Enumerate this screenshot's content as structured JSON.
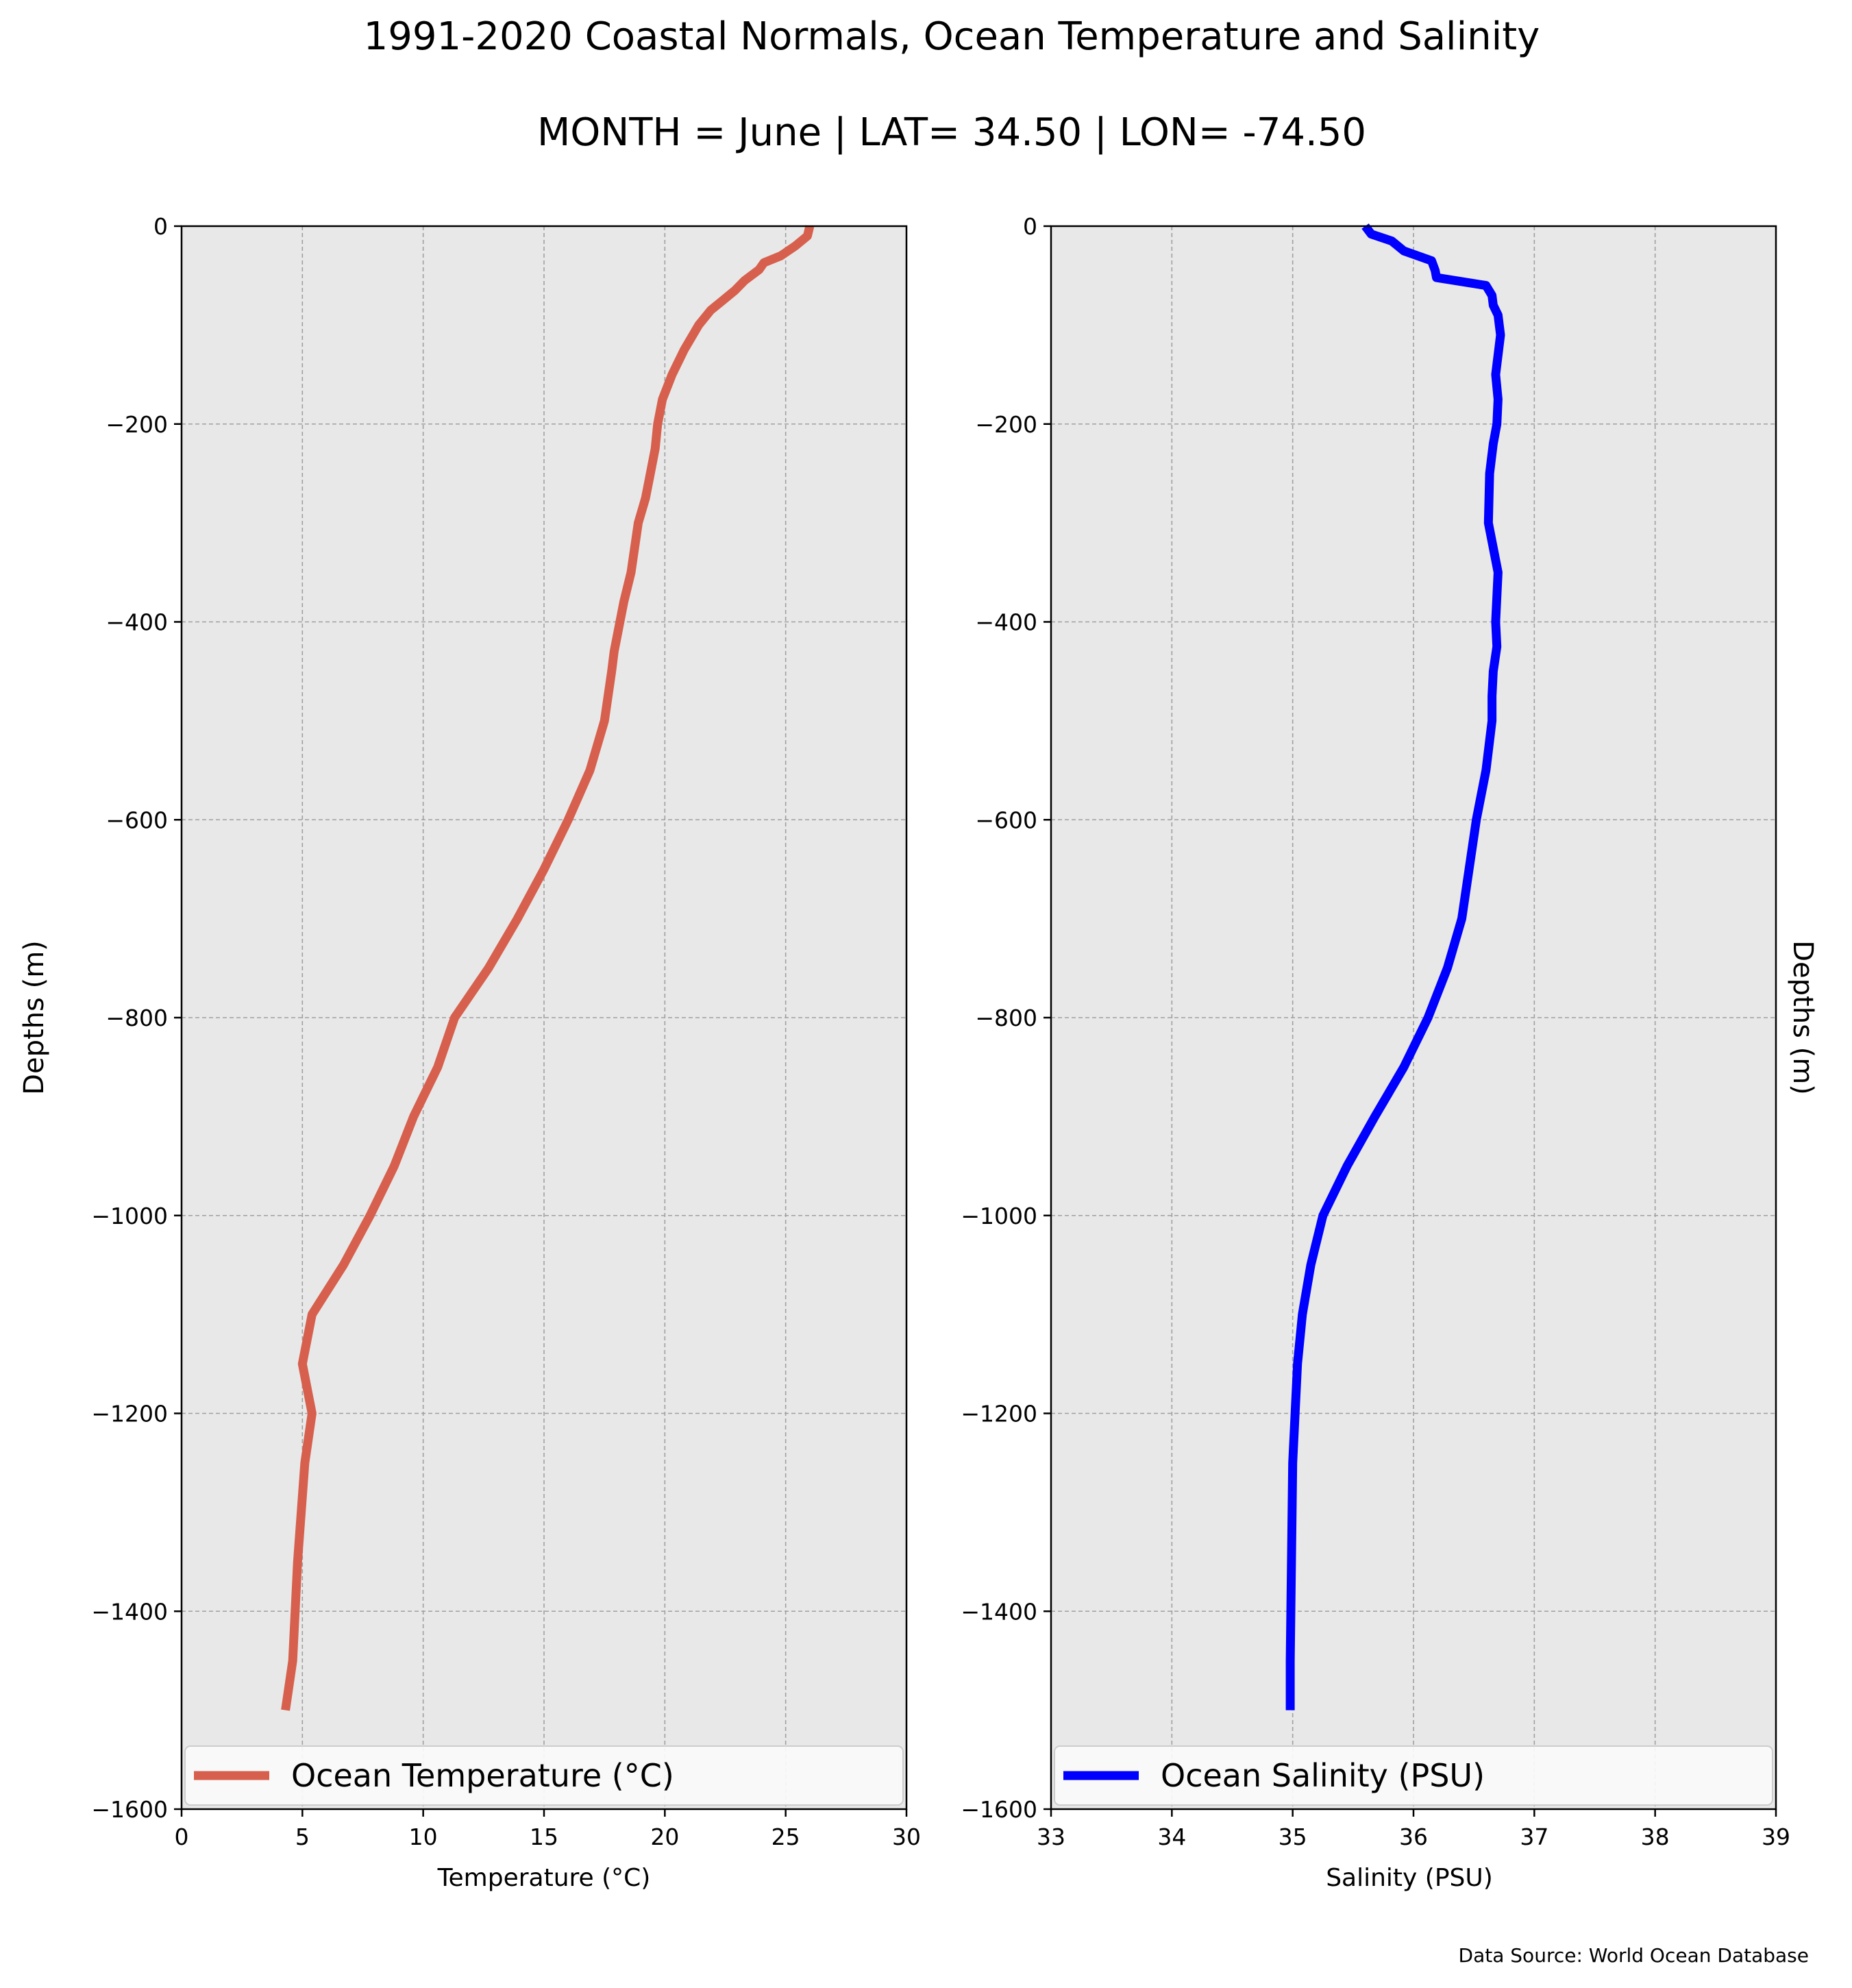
{
  "header": {
    "title": "1991-2020 Coastal Normals, Ocean Temperature and Salinity",
    "subtitle": "MONTH = June | LAT= 34.50 | LON= -74.50"
  },
  "footer": {
    "source": "Data Source: World Ocean Database"
  },
  "colors": {
    "temperature": "#d6604d",
    "salinity": "#0000ff",
    "panel_bg": "#e8e8e8",
    "grid": "#a0a0a0"
  },
  "chart_data": [
    {
      "type": "line",
      "xlabel": "Temperature ($^\\circ$C)",
      "xlabel_display": "Temperature (°C)",
      "ylabel": "Depths (m)",
      "xlim": [
        0,
        30
      ],
      "ylim": [
        -1600,
        0
      ],
      "xticks": [
        0,
        5,
        10,
        15,
        20,
        25,
        30
      ],
      "yticks": [
        0,
        -200,
        -400,
        -600,
        -800,
        -1000,
        -1200,
        -1400,
        -1600
      ],
      "xtick_labels": [
        "0",
        "5",
        "10",
        "15",
        "20",
        "25",
        "30"
      ],
      "ytick_labels": [
        "0",
        "−200",
        "−400",
        "−600",
        "−800",
        "−1000",
        "−1200",
        "−1400",
        "−1600"
      ],
      "grid": true,
      "legend": "lower-center",
      "series": [
        {
          "name": "Ocean Temperature ($^\\circ$C)",
          "display_name": "Ocean Temperature (°C)",
          "color": "#d6604d",
          "x": [
            26.0,
            25.9,
            25.4,
            24.8,
            24.1,
            23.9,
            23.3,
            22.9,
            22.4,
            21.9,
            21.4,
            20.8,
            20.3,
            19.9,
            19.7,
            19.6,
            19.4,
            19.2,
            18.9,
            18.6,
            18.3,
            17.9,
            17.8,
            17.5,
            16.9,
            16.0,
            15.0,
            13.9,
            12.7,
            11.3,
            10.6,
            9.6,
            8.8,
            7.8,
            6.7,
            5.4,
            5.0,
            5.4,
            5.1,
            4.8,
            4.6,
            4.3
          ],
          "y": [
            0,
            -10,
            -20,
            -30,
            -37,
            -44,
            -55,
            -65,
            -75,
            -85,
            -100,
            -125,
            -150,
            -175,
            -200,
            -225,
            -250,
            -275,
            -300,
            -350,
            -380,
            -430,
            -450,
            -500,
            -550,
            -600,
            -650,
            -700,
            -750,
            -800,
            -850,
            -900,
            -950,
            -1000,
            -1050,
            -1100,
            -1150,
            -1200,
            -1250,
            -1350,
            -1450,
            -1500
          ]
        }
      ]
    },
    {
      "type": "line",
      "xlabel": "Salinity (PSU)",
      "ylabel": "Depths (m)",
      "xlim": [
        33,
        39
      ],
      "ylim": [
        -1600,
        0
      ],
      "xticks": [
        33,
        34,
        35,
        36,
        37,
        38,
        39
      ],
      "yticks": [
        0,
        -200,
        -400,
        -600,
        -800,
        -1000,
        -1200,
        -1400,
        -1600
      ],
      "xtick_labels": [
        "33",
        "34",
        "35",
        "36",
        "37",
        "38",
        "39"
      ],
      "ytick_labels": [
        "0",
        "−200",
        "−400",
        "−600",
        "−800",
        "−1000",
        "−1200",
        "−1400",
        "−1600"
      ],
      "grid": true,
      "legend": "lower-center",
      "series": [
        {
          "name": "Ocean Salinity (PSU)",
          "color": "#0000ff",
          "x": [
            35.6,
            35.65,
            35.82,
            35.92,
            36.15,
            36.18,
            36.19,
            36.6,
            36.65,
            36.66,
            36.7,
            36.72,
            36.68,
            36.7,
            36.69,
            36.66,
            36.63,
            36.62,
            36.7,
            36.68,
            36.69,
            36.66,
            36.65,
            36.65,
            36.6,
            36.52,
            36.46,
            36.4,
            36.28,
            36.12,
            35.92,
            35.68,
            35.45,
            35.25,
            35.15,
            35.08,
            35.04,
            35.02,
            35.0,
            34.98,
            34.98
          ],
          "y": [
            0,
            -8,
            -15,
            -25,
            -35,
            -45,
            -52,
            -60,
            -70,
            -80,
            -90,
            -110,
            -150,
            -175,
            -200,
            -220,
            -250,
            -300,
            -350,
            -400,
            -425,
            -450,
            -475,
            -500,
            -550,
            -600,
            -650,
            -700,
            -750,
            -800,
            -850,
            -900,
            -950,
            -1000,
            -1050,
            -1100,
            -1150,
            -1200,
            -1250,
            -1450,
            -1500
          ]
        }
      ]
    }
  ]
}
